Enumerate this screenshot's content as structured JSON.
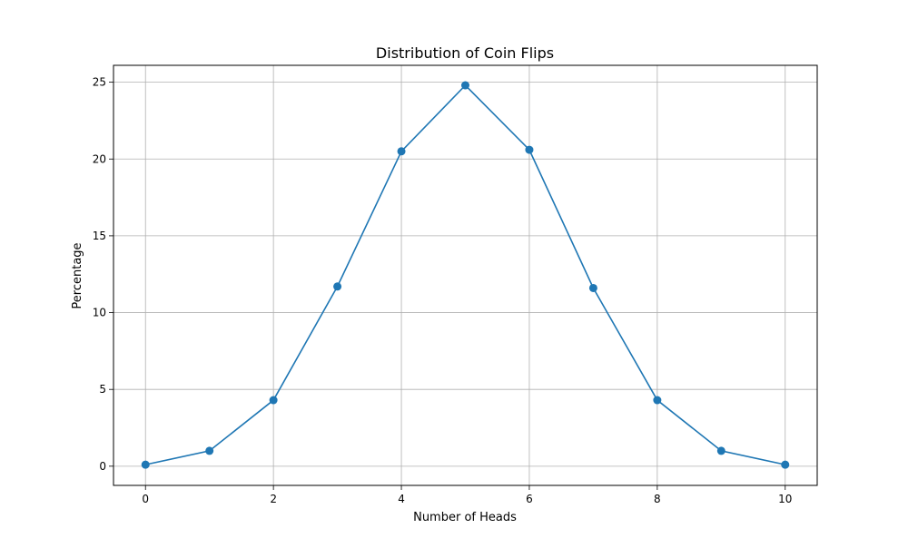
{
  "chart_data": {
    "type": "line",
    "title": "Distribution of Coin Flips",
    "xlabel": "Number of Heads",
    "ylabel": "Percentage",
    "x": [
      0,
      1,
      2,
      3,
      4,
      5,
      6,
      7,
      8,
      9,
      10
    ],
    "series": [
      {
        "values": [
          0.1,
          1.0,
          4.3,
          11.7,
          20.5,
          24.8,
          20.6,
          11.6,
          4.3,
          1.0,
          0.1
        ],
        "color": "#1f77b4",
        "marker": "circle"
      }
    ],
    "xlim": [
      -0.5,
      10.5
    ],
    "ylim": [
      -1.25,
      26.1
    ],
    "xticks": [
      0,
      2,
      4,
      6,
      8,
      10
    ],
    "yticks": [
      0,
      5,
      10,
      15,
      20,
      25
    ],
    "grid": true,
    "legend": "none"
  }
}
